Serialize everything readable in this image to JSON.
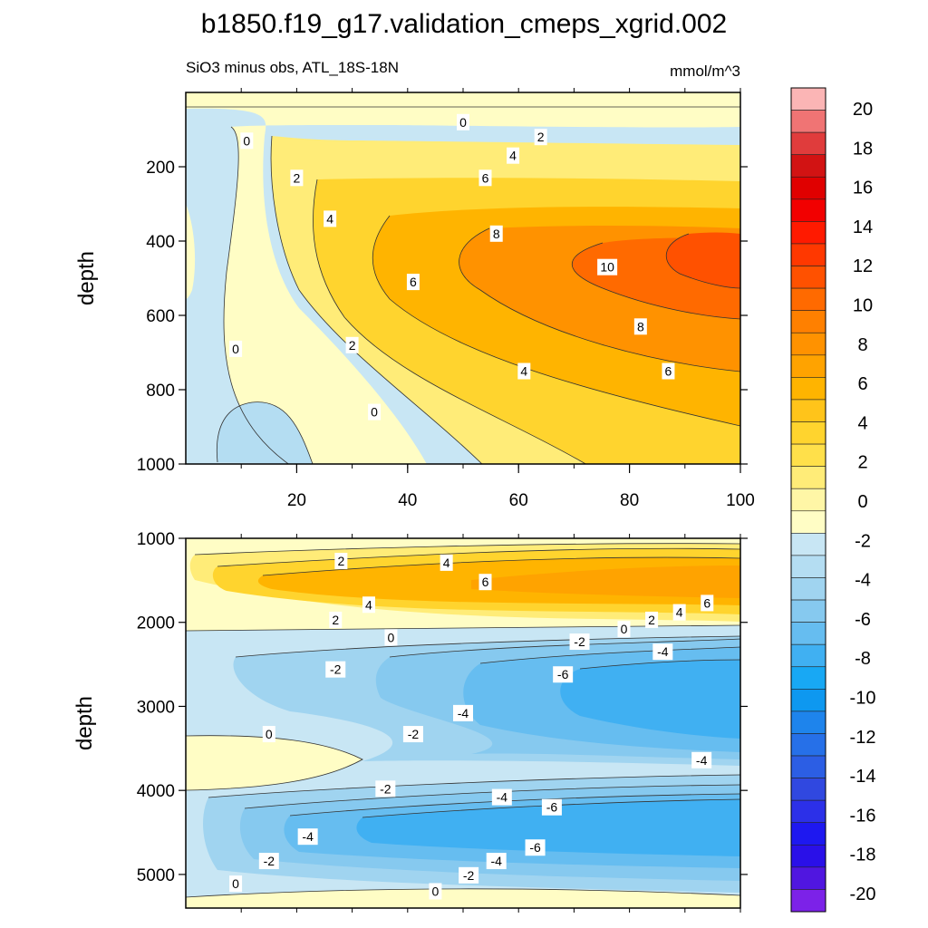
{
  "figure_title": "b1850.f19_g17.validation_cmeps_xgrid.002",
  "subtitle_left": "SiO3 minus obs, ATL_18S-18N",
  "subtitle_right": "mmol/m^3",
  "colorbar": {
    "labels": [
      "20",
      "18",
      "16",
      "14",
      "12",
      "10",
      "8",
      "6",
      "4",
      "2",
      "0",
      "-2",
      "-4",
      "-6",
      "-8",
      "-10",
      "-12",
      "-14",
      "-16",
      "-18",
      "-20"
    ],
    "colors": [
      "#fbb5b5",
      "#f07474",
      "#e03c3c",
      "#d21313",
      "#e00000",
      "#f20000",
      "#ff1a00",
      "#ff3800",
      "#ff5100",
      "#ff6a00",
      "#ff8000",
      "#ff9200",
      "#ffa300",
      "#ffb400",
      "#ffc41a",
      "#ffd42e",
      "#ffe04a",
      "#ffec78",
      "#fff6a6",
      "#fffdc5",
      "#c8e6f4",
      "#b4ddf2",
      "#a0d4f0",
      "#86c9ef",
      "#66bdf0",
      "#40b0f2",
      "#18a8f4",
      "#0e98f0",
      "#1e84ec",
      "#2670e8",
      "#2c5ee4",
      "#3048e0",
      "#2c30e8",
      "#1e18f0",
      "#2a10e8",
      "#5016e0",
      "#7c22e8"
    ]
  },
  "chart_data": [
    {
      "type": "contour",
      "panel": "top",
      "xlabel": "",
      "ylabel": "depth",
      "xlim": [
        0,
        100
      ],
      "ylim": [
        1000,
        0
      ],
      "xticks": [
        "20",
        "40",
        "60",
        "80",
        "100"
      ],
      "yticks": [
        "200",
        "400",
        "600",
        "800",
        "1000"
      ],
      "contour_levels": [
        -2,
        0,
        2,
        4,
        6,
        8,
        10,
        12
      ],
      "contour_labels": [
        {
          "text": "0",
          "x": 50,
          "y": 80
        },
        {
          "text": "2",
          "x": 64,
          "y": 120
        },
        {
          "text": "4",
          "x": 59,
          "y": 170
        },
        {
          "text": "6",
          "x": 54,
          "y": 230
        },
        {
          "text": "8",
          "x": 56,
          "y": 380
        },
        {
          "text": "10",
          "x": 76,
          "y": 470
        },
        {
          "text": "0",
          "x": 11,
          "y": 130
        },
        {
          "text": "2",
          "x": 20,
          "y": 230
        },
        {
          "text": "4",
          "x": 26,
          "y": 340
        },
        {
          "text": "6",
          "x": 41,
          "y": 510
        },
        {
          "text": "0",
          "x": 9,
          "y": 690
        },
        {
          "text": "2",
          "x": 30,
          "y": 680
        },
        {
          "text": "4",
          "x": 61,
          "y": 750
        },
        {
          "text": "8",
          "x": 82,
          "y": 630
        },
        {
          "text": "6",
          "x": 87,
          "y": 750
        },
        {
          "text": "0",
          "x": 34,
          "y": 860
        }
      ]
    },
    {
      "type": "contour",
      "panel": "bottom",
      "xlabel": "",
      "ylabel": "depth",
      "xlim": [
        0,
        100
      ],
      "ylim": [
        5400,
        1000
      ],
      "xticks": [],
      "yticks": [
        "1000",
        "2000",
        "3000",
        "4000",
        "5000"
      ],
      "contour_levels": [
        -8,
        -6,
        -4,
        -2,
        0,
        2,
        4,
        6
      ],
      "contour_labels": [
        {
          "text": "2",
          "x": 28,
          "y": 1270
        },
        {
          "text": "4",
          "x": 47,
          "y": 1290
        },
        {
          "text": "6",
          "x": 54,
          "y": 1520
        },
        {
          "text": "4",
          "x": 33,
          "y": 1790
        },
        {
          "text": "2",
          "x": 27,
          "y": 1970
        },
        {
          "text": "6",
          "x": 94,
          "y": 1770
        },
        {
          "text": "4",
          "x": 89,
          "y": 1880
        },
        {
          "text": "2",
          "x": 84,
          "y": 1970
        },
        {
          "text": "0",
          "x": 79,
          "y": 2080
        },
        {
          "text": "0",
          "x": 37,
          "y": 2180
        },
        {
          "text": "-2",
          "x": 71,
          "y": 2230
        },
        {
          "text": "-4",
          "x": 86,
          "y": 2350
        },
        {
          "text": "-2",
          "x": 27,
          "y": 2560
        },
        {
          "text": "-6",
          "x": 68,
          "y": 2620
        },
        {
          "text": "-4",
          "x": 50,
          "y": 3080
        },
        {
          "text": "-2",
          "x": 41,
          "y": 3330
        },
        {
          "text": "0",
          "x": 15,
          "y": 3330
        },
        {
          "text": "-4",
          "x": 93,
          "y": 3640
        },
        {
          "text": "-2",
          "x": 36,
          "y": 3980
        },
        {
          "text": "-4",
          "x": 57,
          "y": 4080
        },
        {
          "text": "-6",
          "x": 66,
          "y": 4200
        },
        {
          "text": "-4",
          "x": 22,
          "y": 4550
        },
        {
          "text": "-6",
          "x": 63,
          "y": 4680
        },
        {
          "text": "-2",
          "x": 15,
          "y": 4840
        },
        {
          "text": "-4",
          "x": 56,
          "y": 4840
        },
        {
          "text": "-2",
          "x": 51,
          "y": 5010
        },
        {
          "text": "0",
          "x": 9,
          "y": 5110
        },
        {
          "text": "0",
          "x": 45,
          "y": 5200
        }
      ]
    }
  ]
}
